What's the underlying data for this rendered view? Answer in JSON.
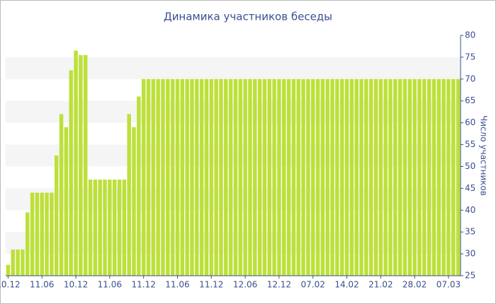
{
  "chart_data": {
    "type": "bar",
    "title": "Динамика участников беседы",
    "y_label": "Число участников",
    "color": "#bde03a",
    "categories": [
      "10.12",
      null,
      null,
      null,
      null,
      null,
      null,
      "11.06",
      null,
      null,
      null,
      null,
      null,
      null,
      "10.12",
      null,
      null,
      null,
      null,
      null,
      null,
      "11.06",
      null,
      null,
      null,
      null,
      null,
      null,
      "11.12",
      null,
      null,
      null,
      null,
      null,
      null,
      "11.06",
      null,
      null,
      null,
      null,
      null,
      null,
      "11.12",
      null,
      null,
      null,
      null,
      null,
      null,
      "12.06",
      null,
      null,
      null,
      null,
      null,
      null,
      "12.12",
      null,
      null,
      null,
      null,
      null,
      null,
      "07.02",
      null,
      null,
      null,
      null,
      null,
      null,
      "14.02",
      null,
      null,
      null,
      null,
      null,
      null,
      "21.02",
      null,
      null,
      null,
      null,
      null,
      null,
      "28.02",
      null,
      null,
      null,
      null,
      null,
      null,
      "07.03",
      null,
      null
    ],
    "values": [
      27.5,
      31,
      31,
      31,
      39.5,
      44,
      44,
      44,
      44,
      44,
      52.5,
      62,
      59,
      72,
      76.5,
      75.5,
      75.5,
      47,
      47,
      47,
      47,
      47,
      47,
      47,
      47,
      62,
      59,
      66,
      70,
      70,
      70,
      70,
      70,
      70,
      70,
      70,
      70,
      70,
      70,
      70,
      70,
      70,
      70,
      70,
      70,
      70,
      70,
      70,
      70,
      70,
      70,
      70,
      70,
      70,
      70,
      70,
      70,
      70,
      70,
      70,
      70,
      70,
      70,
      70,
      70,
      70,
      70,
      70,
      70,
      70,
      70,
      70,
      70,
      70,
      70,
      70,
      70,
      70,
      70,
      70,
      70,
      70,
      70,
      70,
      70,
      70,
      70,
      70,
      70,
      70,
      70,
      70,
      70,
      70
    ],
    "ylim": [
      25,
      80
    ],
    "yticks": [
      25,
      30,
      35,
      40,
      45,
      50,
      55,
      60,
      65,
      70,
      75,
      80
    ],
    "grid": "bands"
  }
}
